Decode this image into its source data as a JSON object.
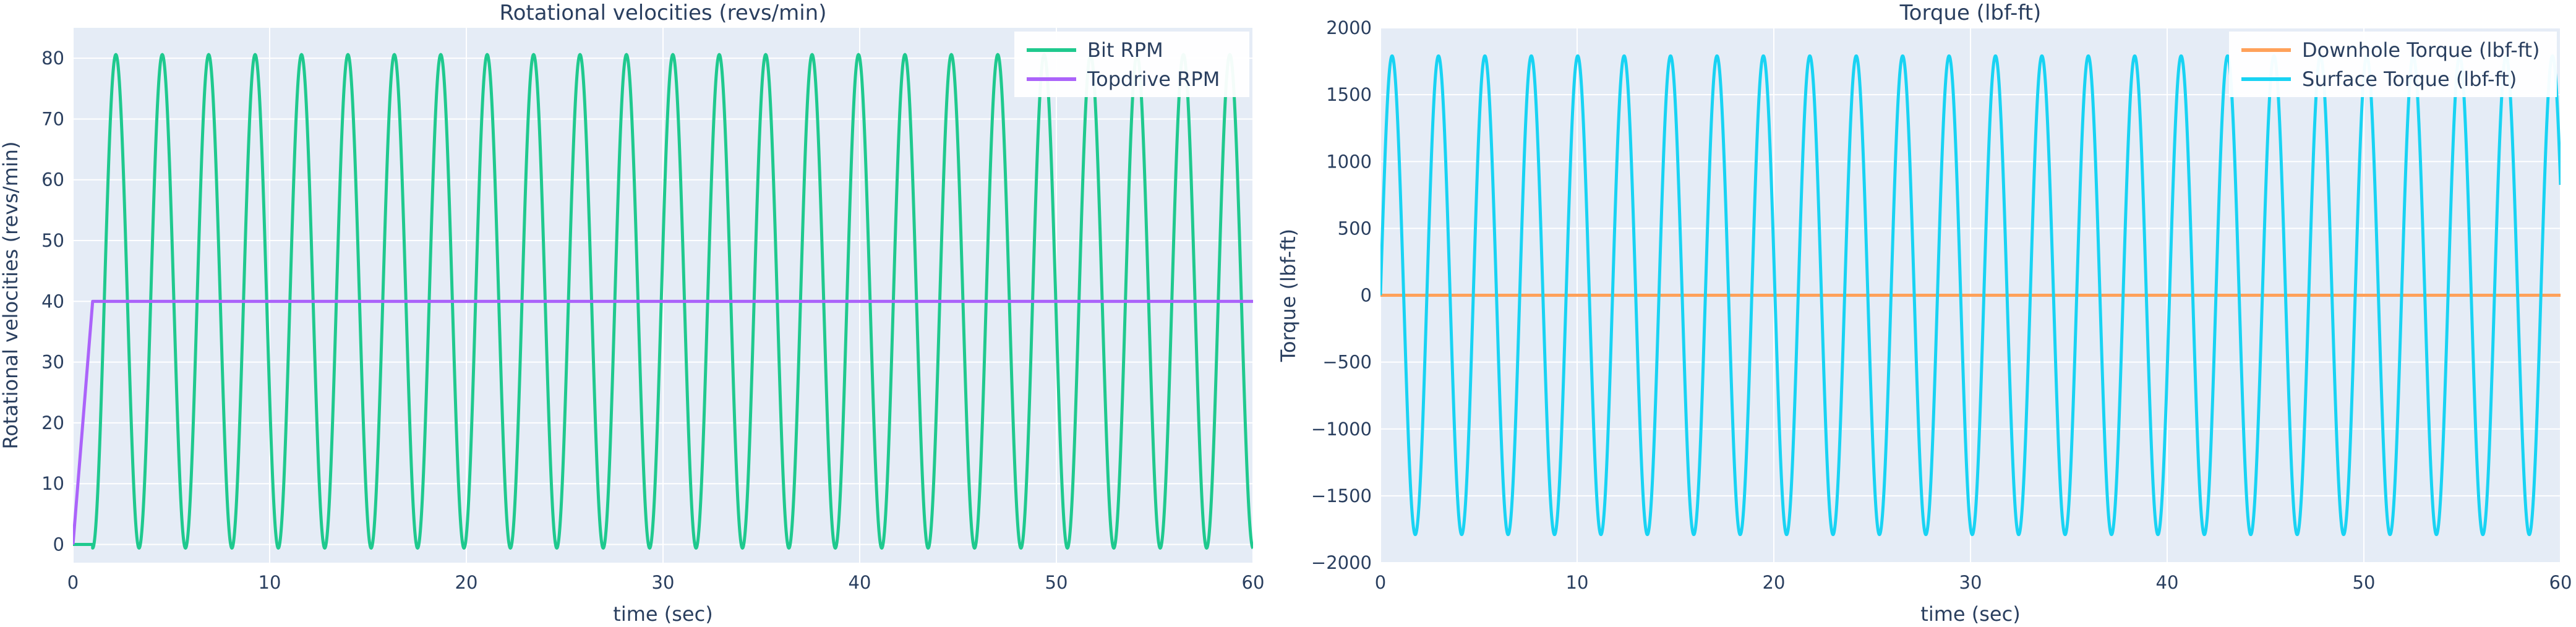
{
  "chart_data": [
    {
      "type": "line",
      "title": "Rotational velocities (revs/min)",
      "xlabel": "time (sec)",
      "ylabel": "Rotational velocities (revs/min)",
      "xlim": [
        0,
        60
      ],
      "ylim": [
        -3,
        85
      ],
      "xticks": [
        0,
        10,
        20,
        30,
        40,
        50,
        60
      ],
      "yticks": [
        0,
        10,
        20,
        30,
        40,
        50,
        60,
        70,
        80
      ],
      "grid": true,
      "legend_position": "top-right",
      "series": [
        {
          "name": "Bit RPM",
          "color": "#1fc98e",
          "mode": "oscillation",
          "start_time": 1.0,
          "pre_value": 0,
          "mean": 40,
          "amplitude": 40.6,
          "period": 2.36,
          "phase_start": "trough_rising"
        },
        {
          "name": "Topdrive RPM",
          "color": "#ab63fa",
          "mode": "ramp",
          "points": [
            [
              0,
              0
            ],
            [
              1.0,
              40
            ],
            [
              60,
              40
            ]
          ]
        }
      ]
    },
    {
      "type": "line",
      "title": "Torque (lbf-ft)",
      "xlabel": "time (sec)",
      "ylabel": "Torque (lbf-ft)",
      "xlim": [
        0,
        60
      ],
      "ylim": [
        -2000,
        2000
      ],
      "xticks": [
        0,
        10,
        20,
        30,
        40,
        50,
        60
      ],
      "yticks": [
        -2000,
        -1500,
        -1000,
        -500,
        0,
        500,
        1000,
        1500,
        2000
      ],
      "grid": true,
      "legend_position": "top-right",
      "series": [
        {
          "name": "Downhole Torque (lbf-ft)",
          "color": "#ffa15a",
          "mode": "constant",
          "points": [
            [
              0,
              0
            ],
            [
              60,
              0
            ]
          ]
        },
        {
          "name": "Surface Torque (lbf-ft)",
          "color": "#19d3f3",
          "mode": "oscillation",
          "start_time": 0,
          "pre_value": 0,
          "mean": 0,
          "amplitude": 1790,
          "period": 2.36,
          "phase_start": "zero_rising"
        }
      ]
    }
  ]
}
